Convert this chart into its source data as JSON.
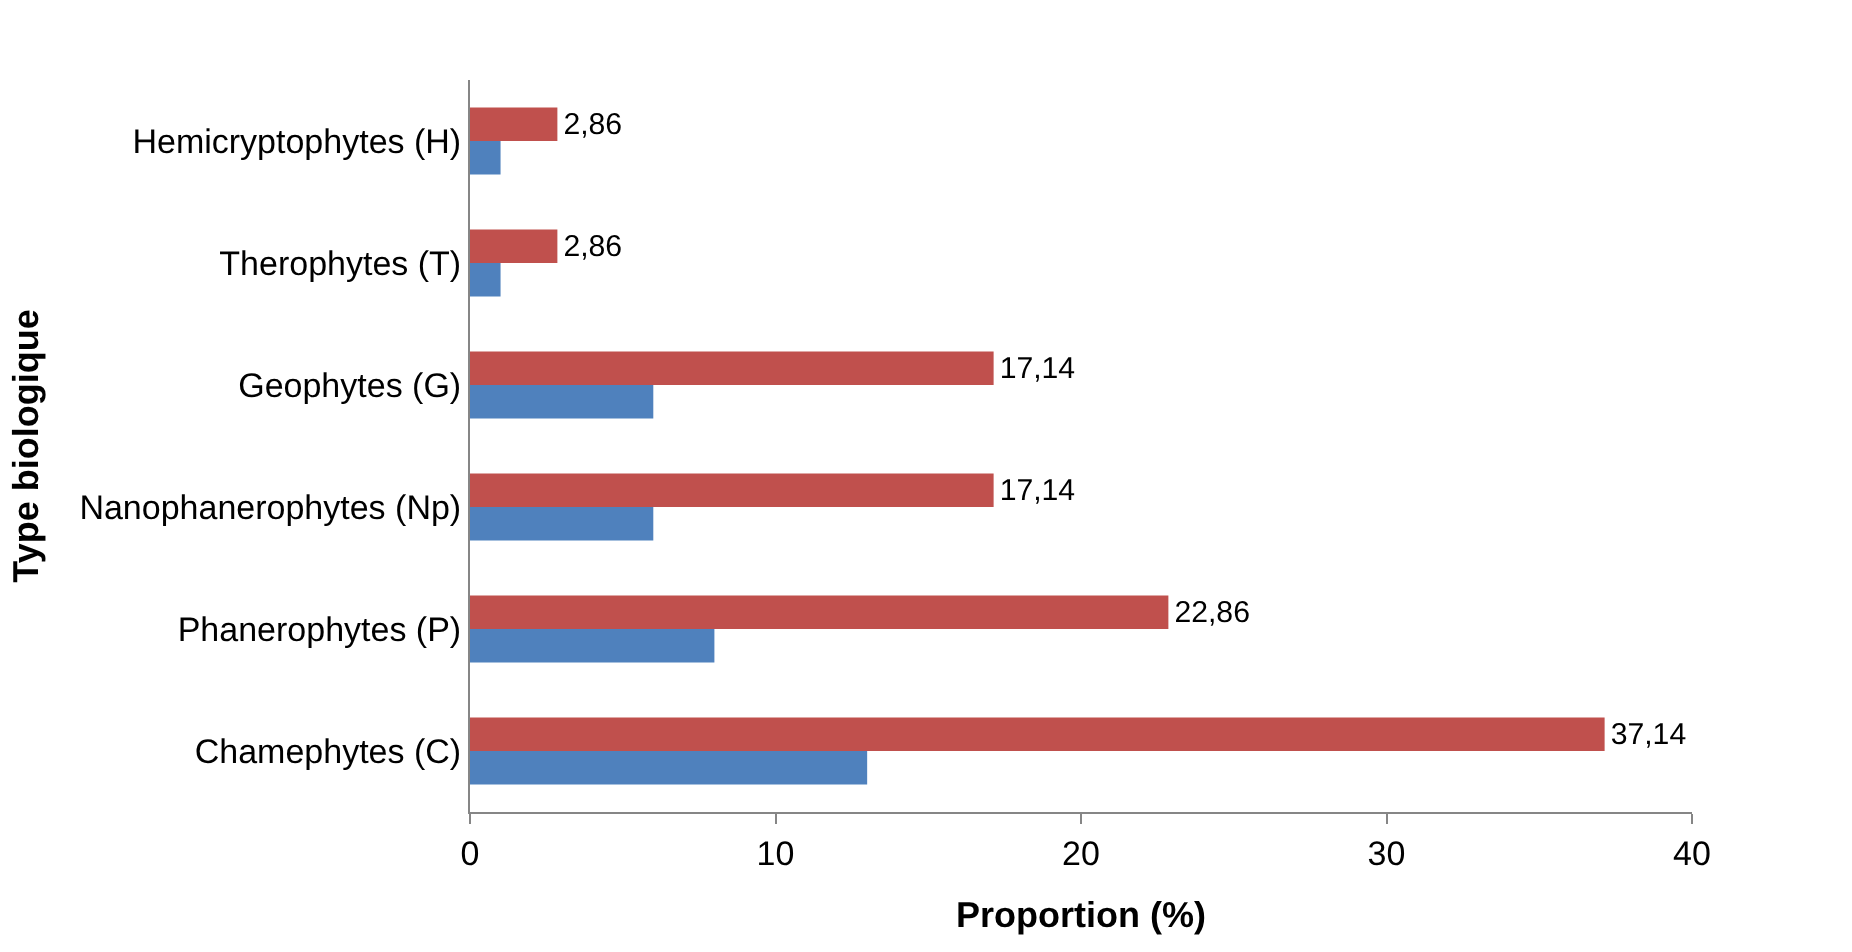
{
  "chart_data": {
    "type": "bar",
    "orientation": "horizontal",
    "ylabel": "Type biologique",
    "xlabel": "Proportion (%)",
    "categories": [
      "Hemicryptophytes (H)",
      "Therophytes (T)",
      "Geophytes (G)",
      "Nanophanerophytes (Np)",
      "Phanerophytes (P)",
      "Chamephytes (C)"
    ],
    "series": [
      {
        "color": "#c0504d",
        "values": [
          2.86,
          2.86,
          17.14,
          17.14,
          22.86,
          37.14
        ],
        "value_labels": [
          "2,86",
          "2,86",
          "17,14",
          "17,14",
          "22,86",
          "37,14"
        ]
      },
      {
        "color": "#4f81bd",
        "values": [
          1,
          1,
          6,
          6,
          8,
          13
        ]
      }
    ],
    "xlim": [
      0,
      40
    ],
    "xticks": [
      0,
      10,
      20,
      30,
      40
    ],
    "legend": false
  }
}
